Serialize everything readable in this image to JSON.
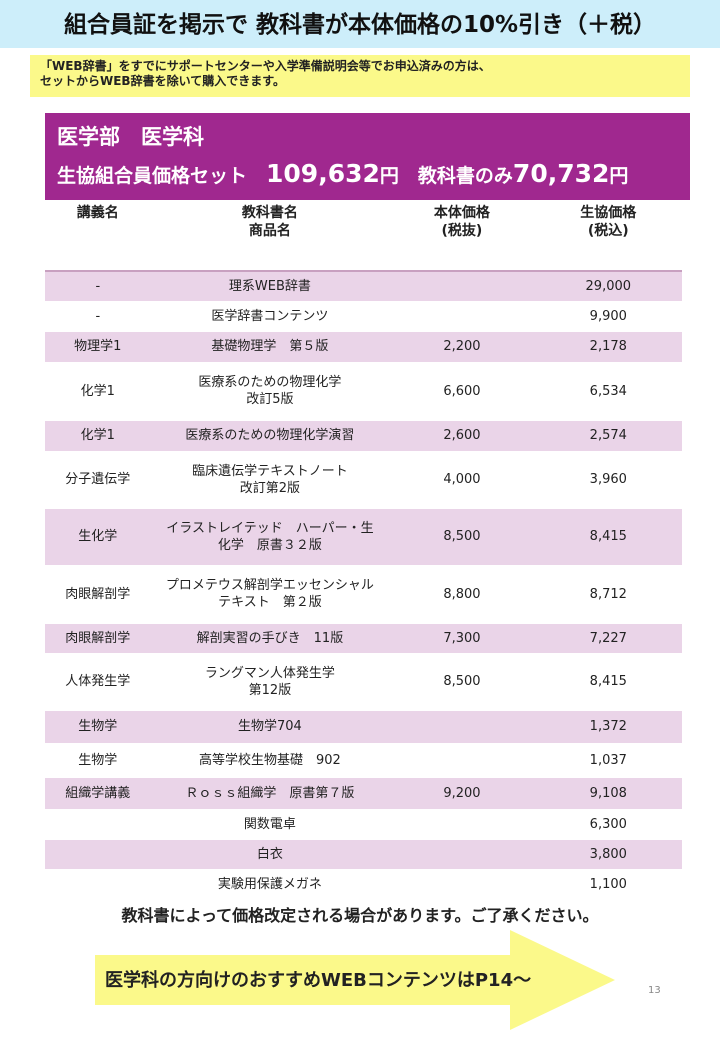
{
  "title": "組合員証を掲示で 教科書が本体価格の10%引き（＋税）",
  "notice": [
    "「WEB辞書」をすでにサポートセンターや入学準備説明会等でお申込済みの方は、",
    "セットからWEB辞書を除いて購入できます。"
  ],
  "band": {
    "dept": "医学部　医学科",
    "set_label": "生協組合員価格セット　",
    "set_price": "109,632",
    "yen": "円",
    "books_label": "　教科書のみ",
    "books_price": "70,732"
  },
  "table": {
    "headers": [
      [
        "講義名",
        ""
      ],
      [
        "教科書名",
        "商品名"
      ],
      [
        "本体価格",
        "(税抜)"
      ],
      [
        "生協価格",
        "(税込)"
      ]
    ],
    "rows": [
      [
        "-",
        "理系WEB辞書",
        "",
        "29,000"
      ],
      [
        "-",
        "医学辞書コンテンツ",
        "",
        "9,900"
      ],
      [
        "物理学1",
        "基礎物理学　第５版",
        "2,200",
        "2,178"
      ],
      [
        "化学1",
        "医療系のための物理化学\n改訂5版",
        "6,600",
        "6,534"
      ],
      [
        "化学1",
        "医療系のための物理化学演習",
        "2,600",
        "2,574"
      ],
      [
        "分子遺伝学",
        "臨床遺伝学テキストノート\n改訂第2版",
        "4,000",
        "3,960"
      ],
      [
        "生化学",
        "イラストレイテッド　ハーパー・生\n化学　原書３２版",
        "8,500",
        "8,415"
      ],
      [
        "肉眼解剖学",
        "プロメテウス解剖学エッセンシャル\nテキスト　第２版",
        "8,800",
        "8,712"
      ],
      [
        "肉眼解剖学",
        "解剖実習の手びき　11版",
        "7,300",
        "7,227"
      ],
      [
        "人体発生学",
        "ラングマン人体発生学\n第12版",
        "8,500",
        "8,415"
      ],
      [
        "生物学",
        "生物学704",
        "",
        "1,372"
      ],
      [
        "生物学",
        "高等学校生物基礎　902",
        "",
        "1,037"
      ],
      [
        "組織学講義",
        "Ｒｏｓｓ組織学　原書第７版",
        "9,200",
        "9,108"
      ],
      [
        "",
        "関数電卓",
        "",
        "6,300"
      ],
      [
        "",
        "白衣",
        "",
        "3,800"
      ],
      [
        "",
        "実験用保護メガネ",
        "",
        "1,100"
      ]
    ]
  },
  "footer_note": "教科書によって価格改定される場合があります。ご了承ください。",
  "arrow_text": "医学科の方向けのおすすめWEBコンテンツはP14～",
  "page_number": "13",
  "colors": {
    "title_bg": "#cdeefa",
    "notice_bg": "#fbf98a",
    "band_bg": "#a0288f",
    "row_alt": "#ead4e8",
    "arrow": "#fbf98a"
  }
}
